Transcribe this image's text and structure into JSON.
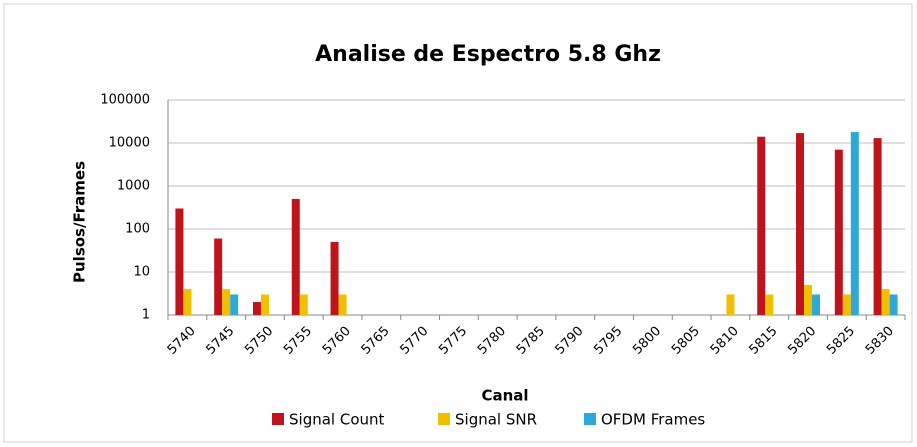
{
  "chart_data": {
    "type": "bar",
    "title": "Analise de Espectro 5.8 Ghz",
    "x_label": "Canal",
    "y_label": "Pulsos/Frames",
    "categories": [
      "5740",
      "5745",
      "5750",
      "5755",
      "5760",
      "5765",
      "5770",
      "5775",
      "5780",
      "5785",
      "5790",
      "5795",
      "5800",
      "5805",
      "5810",
      "5815",
      "5820",
      "5825",
      "5830"
    ],
    "series": [
      {
        "name": "Signal Count",
        "color": "#c0141c",
        "values": [
          300,
          60,
          2,
          500,
          50,
          null,
          null,
          null,
          null,
          null,
          null,
          null,
          null,
          null,
          null,
          14000,
          17000,
          7000,
          13000
        ]
      },
      {
        "name": "Signal SNR",
        "color": "#f0c000",
        "values": [
          4,
          4,
          3,
          3,
          3,
          null,
          null,
          null,
          null,
          null,
          null,
          null,
          null,
          null,
          3,
          3,
          5,
          3,
          4
        ]
      },
      {
        "name": "OFDM Frames",
        "color": "#2ea8d8",
        "values": [
          null,
          3,
          null,
          null,
          null,
          null,
          null,
          null,
          null,
          null,
          null,
          null,
          null,
          null,
          null,
          null,
          3,
          18000,
          3
        ]
      }
    ],
    "ylim": [
      1,
      100000
    ],
    "yticks": [
      1,
      10,
      100,
      1000,
      10000,
      100000
    ],
    "log_scale": true,
    "grid": true,
    "legend": "bottom"
  }
}
